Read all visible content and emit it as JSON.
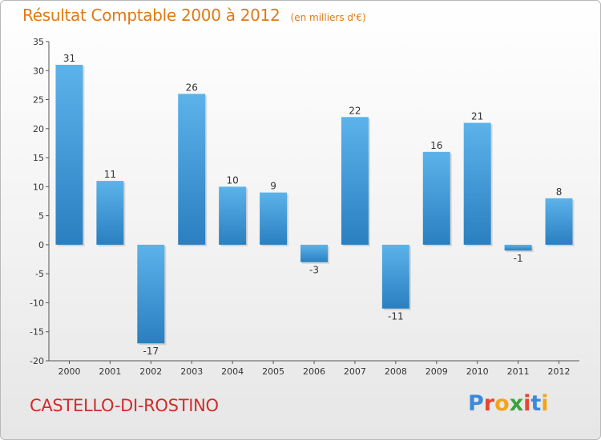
{
  "header": {
    "title": "Résultat Comptable 2000 à 2012",
    "subtitle": "(en milliers d'€)"
  },
  "footer": {
    "city": "CASTELLO-DI-ROSTINO",
    "logo_letters": [
      "P",
      "r",
      "o",
      "x",
      "i",
      "t",
      "i"
    ]
  },
  "colors": {
    "title": "#e07a12",
    "city": "#d12b2b",
    "bar_top": "#5cb3ea",
    "bar_bottom": "#2a7fc0",
    "logo": [
      "#3b8ad9",
      "#e6452f",
      "#f1a51c",
      "#3ba33b",
      "#e6452f",
      "#3b8ad9",
      "#f1a51c"
    ]
  },
  "chart_data": {
    "type": "bar",
    "title": "Résultat Comptable 2000 à 2012",
    "subtitle": "(en milliers d'€)",
    "xlabel": "",
    "ylabel": "",
    "categories": [
      "2000",
      "2001",
      "2002",
      "2003",
      "2004",
      "2005",
      "2006",
      "2007",
      "2008",
      "2009",
      "2010",
      "2011",
      "2012"
    ],
    "values": [
      31,
      11,
      -17,
      26,
      10,
      9,
      -3,
      22,
      -11,
      16,
      21,
      -1,
      8
    ],
    "value_labels": [
      "31",
      "11",
      "-17",
      "26",
      "10",
      "9",
      "-3",
      "22",
      "-11",
      "16",
      "21",
      "-1",
      "8"
    ],
    "ylim": [
      -20,
      35
    ],
    "yticks": [
      -20,
      -15,
      -10,
      -5,
      0,
      5,
      10,
      15,
      20,
      25,
      30,
      35
    ],
    "grid": false
  }
}
